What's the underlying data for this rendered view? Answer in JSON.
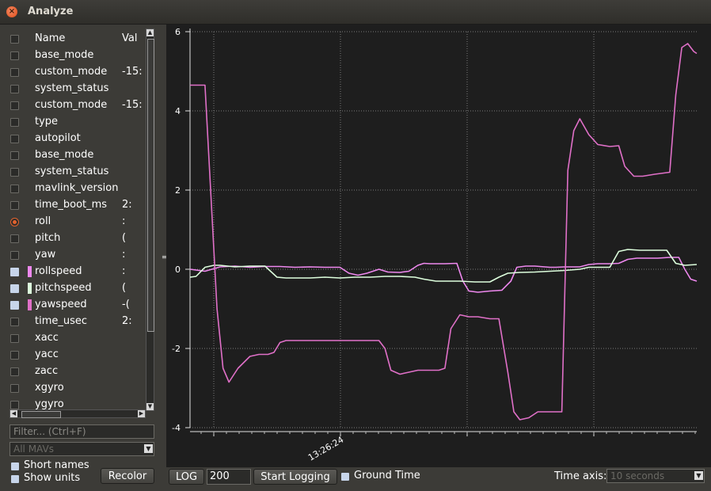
{
  "window": {
    "title": "Analyze"
  },
  "colors": {
    "roll_pink": "#ee88ee",
    "pitch_green": "#ddffdd",
    "yaw_magenta": "#e070c8",
    "grid": "#6e6e6e",
    "accent": "#e0622e"
  },
  "list": {
    "header": {
      "name": "Name",
      "value": "Val"
    },
    "items": [
      {
        "name": "base_mode",
        "value": "",
        "checked": false
      },
      {
        "name": "custom_mode",
        "value": "-15:",
        "checked": false
      },
      {
        "name": "system_status",
        "value": "",
        "checked": false
      },
      {
        "name": "custom_mode",
        "value": "-15:",
        "checked": false
      },
      {
        "name": "type",
        "value": "",
        "checked": false
      },
      {
        "name": "autopilot",
        "value": "",
        "checked": false
      },
      {
        "name": "base_mode",
        "value": "",
        "checked": false
      },
      {
        "name": "system_status",
        "value": "",
        "checked": false
      },
      {
        "name": "mavlink_version",
        "value": "",
        "checked": false
      },
      {
        "name": "time_boot_ms",
        "value": "2:",
        "checked": false
      },
      {
        "name": "roll",
        "value": ":",
        "checked": false,
        "radio": true
      },
      {
        "name": "pitch",
        "value": "(",
        "checked": false
      },
      {
        "name": "yaw",
        "value": ":",
        "checked": false
      },
      {
        "name": "rollspeed",
        "value": ":",
        "checked": true,
        "color": "#ee88ee"
      },
      {
        "name": "pitchspeed",
        "value": "(",
        "checked": true,
        "color": "#ddffdd"
      },
      {
        "name": "yawspeed",
        "value": "-(",
        "checked": true,
        "color": "#e070c8"
      },
      {
        "name": "time_usec",
        "value": "2:",
        "checked": false
      },
      {
        "name": "xacc",
        "value": "",
        "checked": false
      },
      {
        "name": "yacc",
        "value": "",
        "checked": false
      },
      {
        "name": "zacc",
        "value": "",
        "checked": false
      },
      {
        "name": "xgyro",
        "value": "",
        "checked": false
      },
      {
        "name": "ygyro",
        "value": "",
        "checked": false
      }
    ]
  },
  "filter": {
    "placeholder": "Filter... (Ctrl+F)"
  },
  "mav_select": {
    "value": "All MAVs"
  },
  "options": {
    "short_names": "Short names",
    "show_units": "Show units"
  },
  "buttons": {
    "recolor": "Recolor",
    "log": "LOG",
    "start_logging": "Start Logging"
  },
  "log_count": "200",
  "ground_time": "Ground Time",
  "time_axis": {
    "label": "Time axis:",
    "value": "10 seconds"
  },
  "chart_data": {
    "type": "line",
    "ylim": [
      -4,
      6
    ],
    "y_ticks": [
      -4,
      -2,
      0,
      2,
      4,
      6
    ],
    "x_tick_label": "13:26:24",
    "grid": true,
    "series": [
      {
        "name": "rollspeed",
        "color": "#ee88ee",
        "points": [
          [
            0,
            0.0
          ],
          [
            0.5,
            -0.05
          ],
          [
            1,
            0.06
          ],
          [
            1.5,
            0.08
          ],
          [
            2,
            0.05
          ],
          [
            2.5,
            0.07
          ],
          [
            3,
            0.07
          ],
          [
            3.5,
            0.05
          ],
          [
            4,
            0.06
          ],
          [
            4.5,
            0.05
          ],
          [
            5,
            0.05
          ],
          [
            5.3,
            -0.1
          ],
          [
            5.6,
            -0.15
          ],
          [
            5.9,
            -0.1
          ],
          [
            6.3,
            0.0
          ],
          [
            6.6,
            -0.07
          ],
          [
            7,
            -0.08
          ],
          [
            7.3,
            -0.05
          ],
          [
            7.6,
            0.1
          ],
          [
            7.8,
            0.15
          ],
          [
            8,
            0.14
          ],
          [
            8.5,
            0.14
          ],
          [
            8.9,
            0.15
          ],
          [
            9.1,
            -0.3
          ],
          [
            9.3,
            -0.55
          ],
          [
            9.6,
            -0.58
          ],
          [
            10,
            -0.55
          ],
          [
            10.4,
            -0.53
          ],
          [
            10.7,
            -0.3
          ],
          [
            10.9,
            0.05
          ],
          [
            11.2,
            0.08
          ],
          [
            11.5,
            0.08
          ],
          [
            12,
            0.05
          ],
          [
            12.2,
            0.05
          ],
          [
            12.5,
            0.06
          ],
          [
            13,
            0.06
          ],
          [
            13.3,
            0.12
          ],
          [
            13.6,
            0.14
          ],
          [
            14,
            0.14
          ],
          [
            14.3,
            0.15
          ],
          [
            14.6,
            0.25
          ],
          [
            14.9,
            0.28
          ],
          [
            15.2,
            0.28
          ],
          [
            15.6,
            0.28
          ],
          [
            16,
            0.3
          ],
          [
            16.3,
            0.3
          ],
          [
            16.5,
            0.0
          ],
          [
            16.7,
            -0.25
          ],
          [
            16.9,
            -0.3
          ]
        ]
      },
      {
        "name": "pitchspeed",
        "color": "#ddffdd",
        "points": [
          [
            0,
            -0.2
          ],
          [
            0.2,
            -0.18
          ],
          [
            0.5,
            0.05
          ],
          [
            0.8,
            0.1
          ],
          [
            1,
            0.1
          ],
          [
            1.5,
            0.06
          ],
          [
            2,
            0.08
          ],
          [
            2.5,
            0.08
          ],
          [
            2.9,
            -0.2
          ],
          [
            3.2,
            -0.22
          ],
          [
            4,
            -0.22
          ],
          [
            4.5,
            -0.2
          ],
          [
            5,
            -0.22
          ],
          [
            5.5,
            -0.2
          ],
          [
            6,
            -0.2
          ],
          [
            6.5,
            -0.18
          ],
          [
            7,
            -0.18
          ],
          [
            7.5,
            -0.2
          ],
          [
            7.8,
            -0.25
          ],
          [
            8.2,
            -0.3
          ],
          [
            8.5,
            -0.3
          ],
          [
            9,
            -0.3
          ],
          [
            9.5,
            -0.32
          ],
          [
            10,
            -0.32
          ],
          [
            10.3,
            -0.2
          ],
          [
            10.6,
            -0.1
          ],
          [
            11,
            -0.08
          ],
          [
            11.5,
            -0.07
          ],
          [
            12,
            -0.05
          ],
          [
            12.5,
            -0.03
          ],
          [
            13,
            0.0
          ],
          [
            13.3,
            0.05
          ],
          [
            13.6,
            0.05
          ],
          [
            14,
            0.05
          ],
          [
            14.3,
            0.45
          ],
          [
            14.6,
            0.5
          ],
          [
            15,
            0.48
          ],
          [
            15.5,
            0.48
          ],
          [
            15.9,
            0.48
          ],
          [
            16.2,
            0.15
          ],
          [
            16.5,
            0.1
          ],
          [
            16.9,
            0.12
          ]
        ]
      },
      {
        "name": "yawspeed",
        "color": "#e070c8",
        "points": [
          [
            0,
            4.65
          ],
          [
            0.2,
            4.65
          ],
          [
            0.5,
            4.65
          ],
          [
            0.9,
            -1.0
          ],
          [
            1.1,
            -2.5
          ],
          [
            1.3,
            -2.85
          ],
          [
            1.6,
            -2.5
          ],
          [
            2,
            -2.2
          ],
          [
            2.3,
            -2.15
          ],
          [
            2.6,
            -2.15
          ],
          [
            2.8,
            -2.1
          ],
          [
            3,
            -1.85
          ],
          [
            3.2,
            -1.8
          ],
          [
            3.5,
            -1.8
          ],
          [
            4,
            -1.8
          ],
          [
            4.5,
            -1.8
          ],
          [
            5,
            -1.8
          ],
          [
            5.5,
            -1.8
          ],
          [
            6,
            -1.8
          ],
          [
            6.3,
            -1.8
          ],
          [
            6.5,
            -2.0
          ],
          [
            6.7,
            -2.55
          ],
          [
            7,
            -2.65
          ],
          [
            7.3,
            -2.6
          ],
          [
            7.6,
            -2.55
          ],
          [
            8,
            -2.55
          ],
          [
            8.3,
            -2.55
          ],
          [
            8.5,
            -2.5
          ],
          [
            8.7,
            -1.5
          ],
          [
            9,
            -1.15
          ],
          [
            9.3,
            -1.2
          ],
          [
            9.6,
            -1.2
          ],
          [
            10,
            -1.25
          ],
          [
            10.3,
            -1.25
          ],
          [
            10.6,
            -2.6
          ],
          [
            10.8,
            -3.6
          ],
          [
            11,
            -3.8
          ],
          [
            11.3,
            -3.75
          ],
          [
            11.6,
            -3.6
          ],
          [
            12,
            -3.6
          ],
          [
            12.4,
            -3.6
          ],
          [
            12.6,
            2.5
          ],
          [
            12.8,
            3.5
          ],
          [
            13,
            3.8
          ],
          [
            13.3,
            3.4
          ],
          [
            13.6,
            3.15
          ],
          [
            14,
            3.1
          ],
          [
            14.3,
            3.12
          ],
          [
            14.5,
            2.6
          ],
          [
            14.8,
            2.35
          ],
          [
            15.1,
            2.35
          ],
          [
            15.5,
            2.4
          ],
          [
            16,
            2.45
          ],
          [
            16.2,
            4.4
          ],
          [
            16.4,
            5.6
          ],
          [
            16.6,
            5.7
          ],
          [
            16.8,
            5.5
          ],
          [
            16.9,
            5.45
          ]
        ]
      }
    ]
  }
}
